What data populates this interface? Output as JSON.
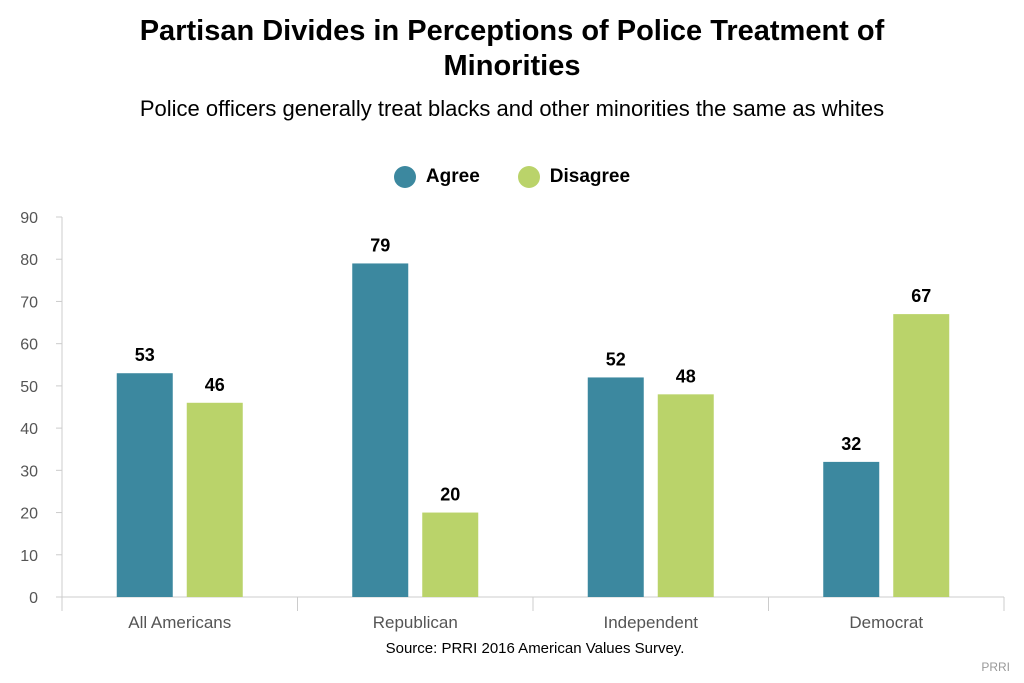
{
  "header": {
    "title_line1": "Partisan Divides in Perceptions of Police Treatment of",
    "title_line2": "Minorities",
    "subtitle": "Police officers generally treat blacks and other minorities the same as whites"
  },
  "legend": [
    {
      "label": "Agree",
      "color": "#3c889f"
    },
    {
      "label": "Disagree",
      "color": "#bad36a"
    }
  ],
  "footer": {
    "source": "Source: PRRI 2016 American Values Survey.",
    "brand": "PRRI"
  },
  "chart_data": {
    "type": "bar",
    "title": "Partisan Divides in Perceptions of Police Treatment of Minorities",
    "subtitle": "Police officers generally treat blacks and other minorities the same as whites",
    "categories": [
      "All Americans",
      "Republican",
      "Independent",
      "Democrat"
    ],
    "series": [
      {
        "name": "Agree",
        "color": "#3c889f",
        "values": [
          53,
          79,
          52,
          32
        ]
      },
      {
        "name": "Disagree",
        "color": "#bad36a",
        "values": [
          46,
          20,
          48,
          67
        ]
      }
    ],
    "yticks": [
      0,
      10,
      20,
      30,
      40,
      50,
      60,
      70,
      80,
      90
    ],
    "ylim": [
      0,
      90
    ],
    "xlabel": "",
    "ylabel": "",
    "legend_position": "top-center",
    "data_labels": true,
    "grid": false
  }
}
